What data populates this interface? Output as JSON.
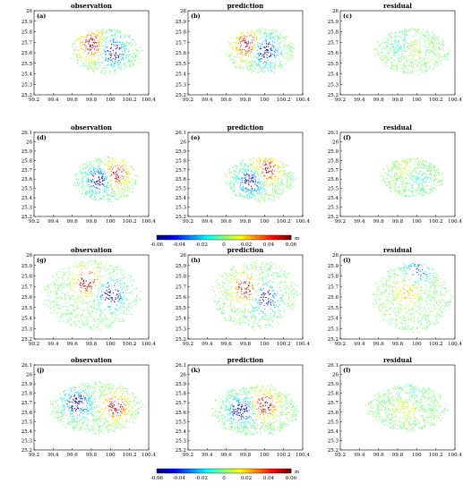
{
  "colorbar": {
    "range": [
      -0.06,
      0.06
    ],
    "ticks": [
      "-0.06",
      "-0.04",
      "-0.02",
      "0",
      "0.02",
      "0.04",
      "0.06"
    ],
    "unit": "m",
    "colormap": "jet"
  },
  "chart_data": [
    {
      "type": "scatter",
      "panel": "(a)",
      "title": "observation",
      "xlim": [
        99.2,
        100.4
      ],
      "ylim": [
        25.2,
        26
      ],
      "xticks": [
        "99.2",
        "99.4",
        "99.6",
        "99.8",
        "100",
        "100.2",
        "100.4"
      ],
      "yticks": [
        "25.2",
        "25.3",
        "25.4",
        "25.5",
        "25.6",
        "25.7",
        "25.8",
        "25.9",
        "26"
      ],
      "pattern": {
        "cx": 99.95,
        "cy": 25.62,
        "rx": 0.34,
        "ry": 0.2,
        "density": 120,
        "positive": {
          "x": 99.8,
          "y": 25.68,
          "value": 0.06
        },
        "negative": {
          "x": 100.02,
          "y": 25.62,
          "value": -0.06
        }
      }
    },
    {
      "type": "scatter",
      "panel": "(b)",
      "title": "prediction",
      "xlim": [
        99.2,
        100.4
      ],
      "ylim": [
        25.2,
        26
      ],
      "xticks": [
        "99.2",
        "99.4",
        "99.6",
        "99.8",
        "100",
        "100.2",
        "100.4"
      ],
      "yticks": [
        "25.2",
        "25.3",
        "25.4",
        "25.5",
        "25.6",
        "25.7",
        "25.8",
        "25.9",
        "26"
      ],
      "pattern": {
        "cx": 99.95,
        "cy": 25.62,
        "rx": 0.34,
        "ry": 0.2,
        "density": 120,
        "positive": {
          "x": 99.82,
          "y": 25.68,
          "value": 0.06
        },
        "negative": {
          "x": 100.0,
          "y": 25.62,
          "value": -0.06
        }
      }
    },
    {
      "type": "scatter",
      "panel": "(c)",
      "title": "residual",
      "xlim": [
        99.2,
        100.4
      ],
      "ylim": [
        25.2,
        26
      ],
      "xticks": [
        "99.2",
        "99.4",
        "99.6",
        "99.8",
        "100",
        "100.2",
        "100.4"
      ],
      "yticks": [
        "25.2",
        "25.3",
        "25.4",
        "25.5",
        "25.6",
        "25.7",
        "25.8",
        "25.9",
        "26"
      ],
      "pattern": {
        "cx": 99.95,
        "cy": 25.62,
        "rx": 0.36,
        "ry": 0.2,
        "density": 120,
        "positive": {
          "x": 99.95,
          "y": 25.65,
          "value": 0.012
        },
        "negative": {
          "x": 99.85,
          "y": 25.68,
          "value": -0.012
        }
      }
    },
    {
      "type": "scatter",
      "panel": "(d)",
      "title": "observation",
      "xlim": [
        99.2,
        100.4
      ],
      "ylim": [
        25.2,
        26.1
      ],
      "xticks": [
        "99.2",
        "99.4",
        "99.6",
        "99.8",
        "100",
        "100.2",
        "100.4"
      ],
      "yticks": [
        "25.2",
        "25.3",
        "25.4",
        "25.5",
        "25.6",
        "25.7",
        "25.8",
        "25.9",
        "26",
        "26.1"
      ],
      "pattern": {
        "cx": 99.95,
        "cy": 25.6,
        "rx": 0.32,
        "ry": 0.22,
        "density": 110,
        "positive": {
          "x": 100.05,
          "y": 25.66,
          "value": 0.06
        },
        "negative": {
          "x": 99.88,
          "y": 25.6,
          "value": -0.06
        }
      }
    },
    {
      "type": "scatter",
      "panel": "(e)",
      "title": "prediction",
      "xlim": [
        99.2,
        100.4
      ],
      "ylim": [
        25.2,
        26.1
      ],
      "xticks": [
        "99.2",
        "99.4",
        "99.6",
        "99.8",
        "100",
        "100.2",
        "100.4"
      ],
      "yticks": [
        "25.2",
        "25.3",
        "25.4",
        "25.5",
        "25.6",
        "25.7",
        "25.8",
        "25.9",
        "26",
        "26.1"
      ],
      "pattern": {
        "cx": 99.95,
        "cy": 25.6,
        "rx": 0.34,
        "ry": 0.22,
        "density": 130,
        "positive": {
          "x": 100.02,
          "y": 25.7,
          "value": 0.06
        },
        "negative": {
          "x": 99.85,
          "y": 25.58,
          "value": -0.06
        }
      }
    },
    {
      "type": "scatter",
      "panel": "(f)",
      "title": "residual",
      "xlim": [
        99.2,
        100.4
      ],
      "ylim": [
        25.2,
        26.1
      ],
      "xticks": [
        "99.2",
        "99.4",
        "99.6",
        "99.8",
        "100",
        "100.2",
        "100.4"
      ],
      "yticks": [
        "25.2",
        "25.3",
        "25.4",
        "25.5",
        "25.6",
        "25.7",
        "25.8",
        "25.9",
        "26",
        "26.1"
      ],
      "pattern": {
        "cx": 99.95,
        "cy": 25.62,
        "rx": 0.3,
        "ry": 0.2,
        "density": 110,
        "positive": {
          "x": 99.9,
          "y": 25.7,
          "value": 0.012
        },
        "negative": {
          "x": 100.0,
          "y": 25.62,
          "value": -0.012
        }
      }
    },
    {
      "type": "scatter",
      "panel": "(g)",
      "title": "observation",
      "xlim": [
        99.2,
        100.4
      ],
      "ylim": [
        25.2,
        26
      ],
      "xticks": [
        "99.2",
        "99.4",
        "99.6",
        "99.8",
        "100",
        "100.2",
        "100.4"
      ],
      "yticks": [
        "25.2",
        "25.3",
        "25.4",
        "25.5",
        "25.6",
        "25.7",
        "25.8",
        "25.9",
        "26"
      ],
      "pattern": {
        "cx": 99.8,
        "cy": 25.62,
        "rx": 0.48,
        "ry": 0.3,
        "density": 170,
        "positive": {
          "x": 99.75,
          "y": 25.75,
          "value": 0.06
        },
        "negative": {
          "x": 100.0,
          "y": 25.62,
          "value": -0.06
        }
      }
    },
    {
      "type": "scatter",
      "panel": "(h)",
      "title": "prediction",
      "xlim": [
        99.2,
        100.4
      ],
      "ylim": [
        25.2,
        26
      ],
      "xticks": [
        "99.2",
        "99.4",
        "99.6",
        "99.8",
        "100",
        "100.2",
        "100.4"
      ],
      "yticks": [
        "25.2",
        "25.3",
        "25.4",
        "25.5",
        "25.6",
        "25.7",
        "25.8",
        "25.9",
        "26"
      ],
      "pattern": {
        "cx": 99.9,
        "cy": 25.62,
        "rx": 0.42,
        "ry": 0.3,
        "density": 150,
        "positive": {
          "x": 99.8,
          "y": 25.68,
          "value": 0.06
        },
        "negative": {
          "x": 100.0,
          "y": 25.6,
          "value": -0.06
        }
      }
    },
    {
      "type": "scatter",
      "panel": "(i)",
      "title": "residual",
      "xlim": [
        99.2,
        100.4
      ],
      "ylim": [
        25.2,
        26
      ],
      "xticks": [
        "99.2",
        "99.4",
        "99.6",
        "99.8",
        "100",
        "100.2",
        "100.4"
      ],
      "yticks": [
        "25.2",
        "25.3",
        "25.4",
        "25.5",
        "25.6",
        "25.7",
        "25.8",
        "25.9",
        "26"
      ],
      "pattern": {
        "cx": 99.95,
        "cy": 25.6,
        "rx": 0.38,
        "ry": 0.3,
        "density": 150,
        "positive": {
          "x": 99.9,
          "y": 25.65,
          "value": 0.025
        },
        "negative": {
          "x": 100.0,
          "y": 25.85,
          "value": -0.035
        }
      }
    },
    {
      "type": "scatter",
      "panel": "(j)",
      "title": "observation",
      "xlim": [
        99.2,
        100.4
      ],
      "ylim": [
        25.2,
        26.1
      ],
      "xticks": [
        "99.2",
        "99.4",
        "99.6",
        "99.8",
        "100",
        "100.2",
        "100.4"
      ],
      "yticks": [
        "25.2",
        "25.3",
        "25.4",
        "25.5",
        "25.6",
        "25.7",
        "25.8",
        "25.9",
        "26",
        "26.1"
      ],
      "pattern": {
        "cx": 99.85,
        "cy": 25.65,
        "rx": 0.45,
        "ry": 0.25,
        "density": 170,
        "positive": {
          "x": 100.05,
          "y": 25.66,
          "value": 0.06
        },
        "negative": {
          "x": 99.65,
          "y": 25.7,
          "value": -0.06
        }
      }
    },
    {
      "type": "scatter",
      "panel": "(k)",
      "title": "prediction",
      "xlim": [
        99.2,
        100.4
      ],
      "ylim": [
        25.2,
        26.1
      ],
      "xticks": [
        "99.2",
        "99.4",
        "99.6",
        "99.8",
        "100",
        "100.2",
        "100.4"
      ],
      "yticks": [
        "25.2",
        "25.3",
        "25.4",
        "25.5",
        "25.6",
        "25.7",
        "25.8",
        "25.9",
        "26",
        "26.1"
      ],
      "pattern": {
        "cx": 99.9,
        "cy": 25.62,
        "rx": 0.42,
        "ry": 0.25,
        "density": 170,
        "positive": {
          "x": 100.0,
          "y": 25.68,
          "value": 0.06
        },
        "negative": {
          "x": 99.75,
          "y": 25.62,
          "value": -0.06
        }
      }
    },
    {
      "type": "scatter",
      "panel": "(l)",
      "title": "residual",
      "xlim": [
        99.2,
        100.4
      ],
      "ylim": [
        25.2,
        26.1
      ],
      "xticks": [
        "99.2",
        "99.4",
        "99.6",
        "99.8",
        "100",
        "100.2",
        "100.4"
      ],
      "yticks": [
        "25.2",
        "25.3",
        "25.4",
        "25.5",
        "25.6",
        "25.7",
        "25.8",
        "25.9",
        "26",
        "26.1"
      ],
      "pattern": {
        "cx": 99.9,
        "cy": 25.65,
        "rx": 0.4,
        "ry": 0.22,
        "density": 140,
        "positive": {
          "x": 99.9,
          "y": 25.65,
          "value": 0.018
        },
        "negative": {
          "x": 99.95,
          "y": 25.75,
          "value": -0.01
        }
      }
    }
  ]
}
